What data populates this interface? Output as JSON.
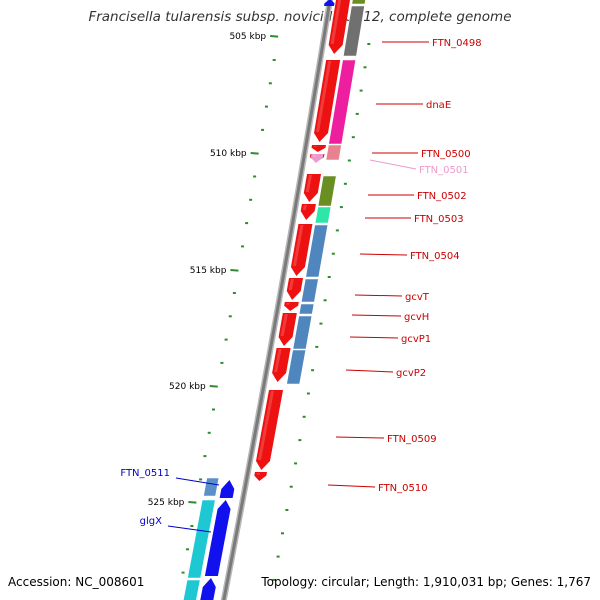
{
  "title": "Francisella tularensis subsp. novicida U112, complete genome",
  "footer": {
    "accession": "Accession: NC_008601",
    "summary": "Topology: circular; Length: 1,910,031 bp; Genes: 1,767"
  },
  "colors": {
    "backbone": "#7a7a7a",
    "tick": "#2e8b2e",
    "gene_red": "#ee1111",
    "gene_blue": "#1111ee",
    "label_red": "#cc0000",
    "label_blue": "#0000cc",
    "label_pink": "#ee99cc",
    "band_gray": "#707070",
    "band_pink": "#ee1f9e",
    "band_salmon": "#e8828f",
    "band_olive": "#6b8e23",
    "band_mint": "#2ee6a8",
    "band_steel": "#4f86bd",
    "band_cyan": "#1ec8d2",
    "band_lightsteel": "#5a8fc8"
  },
  "scale_ticks": [
    {
      "label": "505 kbp",
      "value": 505
    },
    {
      "label": "510 kbp",
      "value": 510
    },
    {
      "label": "515 kbp",
      "value": 515
    },
    {
      "label": "520 kbp",
      "value": 520
    },
    {
      "label": "525 kbp",
      "value": 525
    }
  ],
  "genes": [
    {
      "name": "FTN_0498",
      "strand": "forward",
      "color": "label_red"
    },
    {
      "name": "dnaE",
      "strand": "forward",
      "color": "label_red"
    },
    {
      "name": "FTN_0500",
      "strand": "forward",
      "color": "label_red"
    },
    {
      "name": "FTN_0501",
      "strand": "forward",
      "color": "label_pink"
    },
    {
      "name": "FTN_0502",
      "strand": "forward",
      "color": "label_red"
    },
    {
      "name": "FTN_0503",
      "strand": "forward",
      "color": "label_red"
    },
    {
      "name": "FTN_0504",
      "strand": "forward",
      "color": "label_red"
    },
    {
      "name": "gcvT",
      "strand": "forward",
      "color": "label_red"
    },
    {
      "name": "gcvH",
      "strand": "forward",
      "color": "label_red"
    },
    {
      "name": "gcvP1",
      "strand": "forward",
      "color": "label_red"
    },
    {
      "name": "gcvP2",
      "strand": "forward",
      "color": "label_red"
    },
    {
      "name": "FTN_0509",
      "strand": "forward",
      "color": "label_red"
    },
    {
      "name": "FTN_0510",
      "strand": "forward",
      "color": "label_red"
    },
    {
      "name": "FTN_0511",
      "strand": "reverse",
      "color": "label_blue"
    },
    {
      "name": "glgX",
      "strand": "reverse",
      "color": "label_blue"
    }
  ]
}
